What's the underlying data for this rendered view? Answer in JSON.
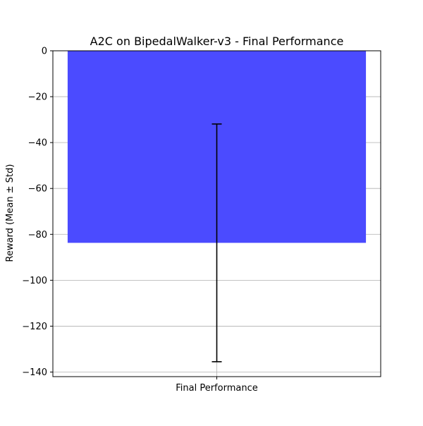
{
  "chart_data": {
    "type": "bar",
    "title": "A2C on BipedalWalker-v3 - Final Performance",
    "xlabel": "",
    "ylabel": "Reward (Mean ± Std)",
    "categories": [
      "Final Performance"
    ],
    "values": [
      -83.7
    ],
    "error": [
      51.8
    ],
    "ylim": [
      -142,
      0
    ],
    "yticks": [
      0,
      -20,
      -40,
      -60,
      -80,
      -100,
      -120,
      -140
    ],
    "grid": true,
    "colors": {
      "bar": "#4b4bff",
      "error_bar": "#000000",
      "grid": "#b0b0b0",
      "axes": "#000000"
    }
  }
}
